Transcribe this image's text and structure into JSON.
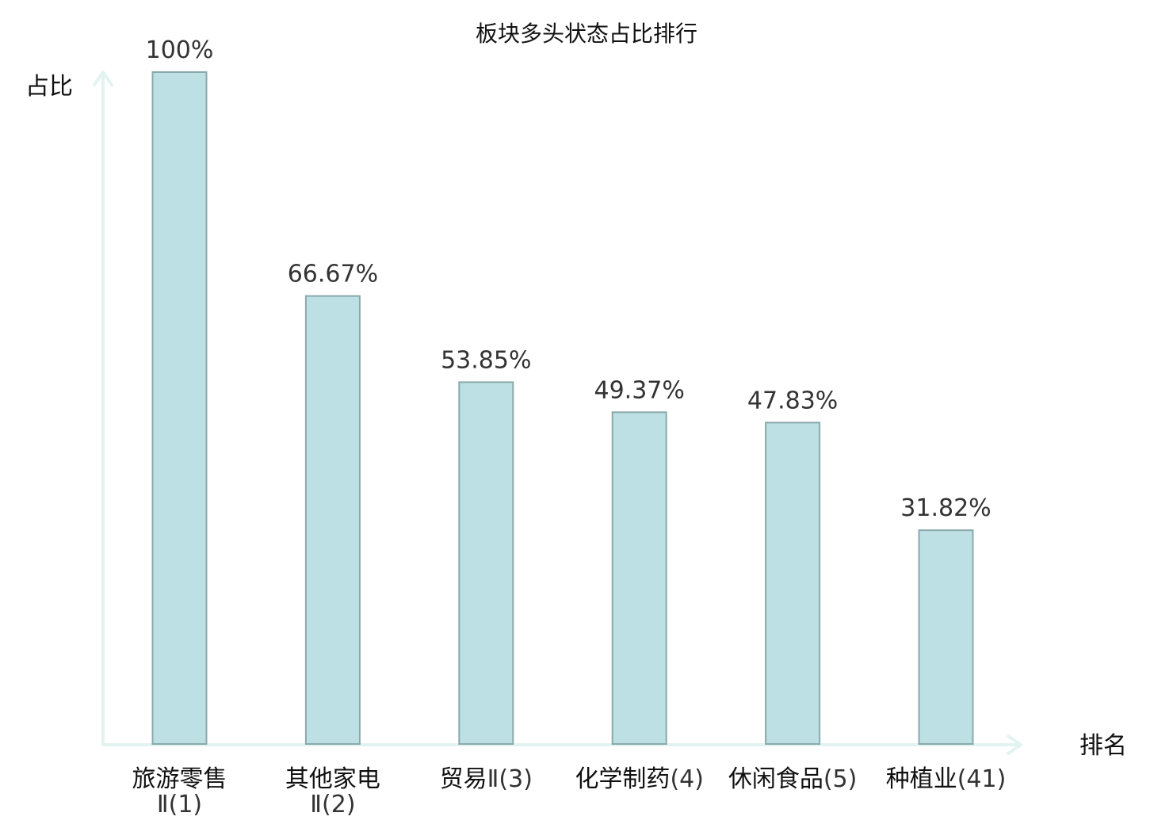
{
  "chart_data": {
    "type": "bar",
    "title": "板块多头状态占比排行",
    "ylabel": "占比",
    "xlabel": "排名",
    "ylim": [
      0,
      100
    ],
    "grid": false,
    "legend": "none",
    "categories": [
      {
        "name": "旅游零售",
        "rank": "Ⅱ(1)"
      },
      {
        "name": "其他家电",
        "rank": "Ⅱ(2)"
      },
      {
        "name": "贸易",
        "rank": "Ⅱ(3)"
      },
      {
        "name": "化学制药",
        "rank": "(4)"
      },
      {
        "name": "休闲食品",
        "rank": "(5)"
      },
      {
        "name": "种植业",
        "rank": "(41)"
      }
    ],
    "values": [
      100,
      66.67,
      53.85,
      49.37,
      47.83,
      31.82
    ],
    "value_labels": [
      "100%",
      "66.67%",
      "53.85%",
      "49.37%",
      "47.83%",
      "31.82%"
    ],
    "highlight_index": 5,
    "colors": {
      "bar_fill": "#bce0e3",
      "bar_stroke": "#8aa9ab",
      "axis": "#e3f3f1",
      "highlight_text": "#e8141b",
      "label_text": "#333333"
    }
  }
}
